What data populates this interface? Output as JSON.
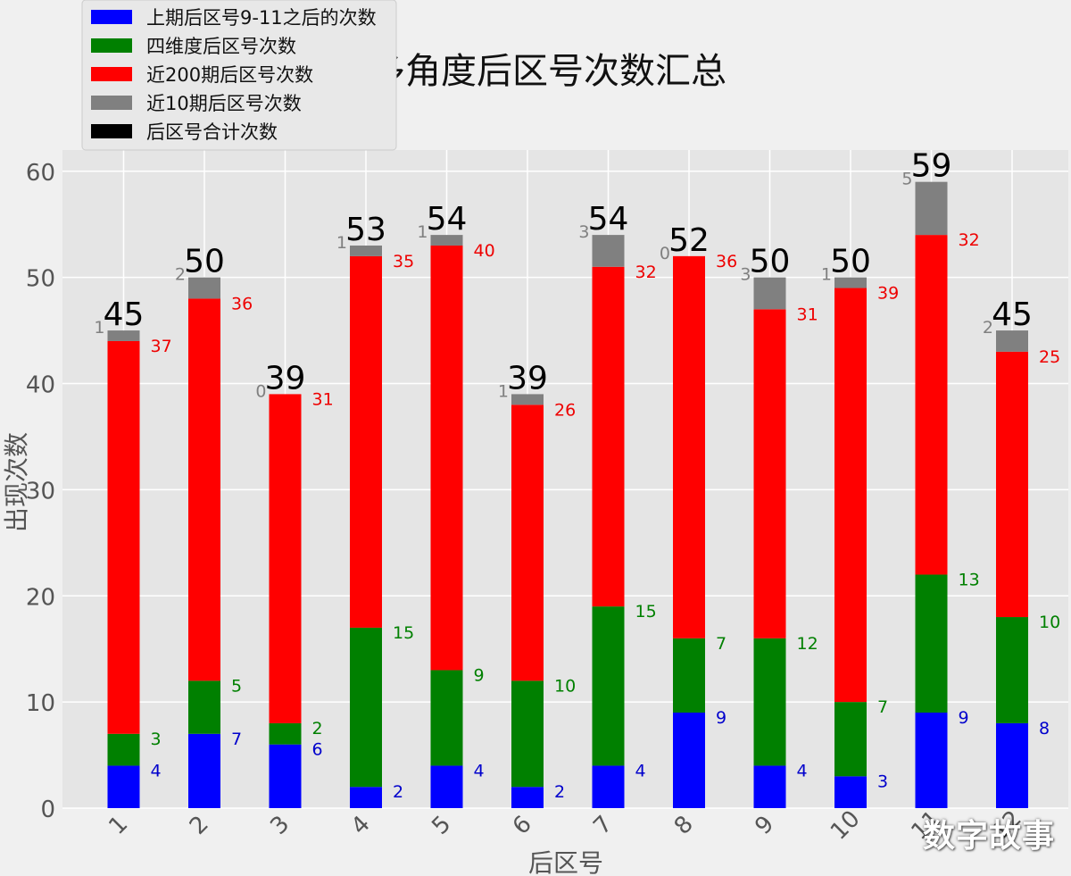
{
  "chart_data": {
    "type": "bar",
    "title": "多角度后区号次数汇总",
    "xlabel": "后区号",
    "ylabel": "出现次数",
    "ylim": [
      0,
      62
    ],
    "yticks": [
      0,
      10,
      20,
      30,
      40,
      50,
      60
    ],
    "grid": true,
    "legend_position": "top-left",
    "categories": [
      "1",
      "2",
      "3",
      "4",
      "5",
      "6",
      "7",
      "8",
      "9",
      "10",
      "11",
      "12"
    ],
    "series": [
      {
        "name": "上期后区号9-11之后的次数",
        "color": "#0000ff",
        "values": [
          4,
          7,
          6,
          2,
          4,
          2,
          4,
          9,
          4,
          3,
          9,
          8
        ]
      },
      {
        "name": "四维度后区号次数",
        "color": "#008000",
        "values": [
          3,
          5,
          2,
          15,
          9,
          10,
          15,
          7,
          12,
          7,
          13,
          10
        ]
      },
      {
        "name": "近200期后区号次数",
        "color": "#ff0000",
        "values": [
          37,
          36,
          31,
          35,
          40,
          26,
          32,
          36,
          31,
          39,
          32,
          25
        ]
      },
      {
        "name": "近10期后区号次数",
        "color": "#808080",
        "values": [
          1,
          2,
          0,
          1,
          1,
          1,
          3,
          0,
          3,
          1,
          5,
          2
        ]
      },
      {
        "name": "后区号合计次数",
        "color": "#000000",
        "values": [
          45,
          50,
          39,
          53,
          54,
          39,
          54,
          52,
          50,
          50,
          59,
          45
        ]
      }
    ]
  },
  "watermark": "数字故事"
}
